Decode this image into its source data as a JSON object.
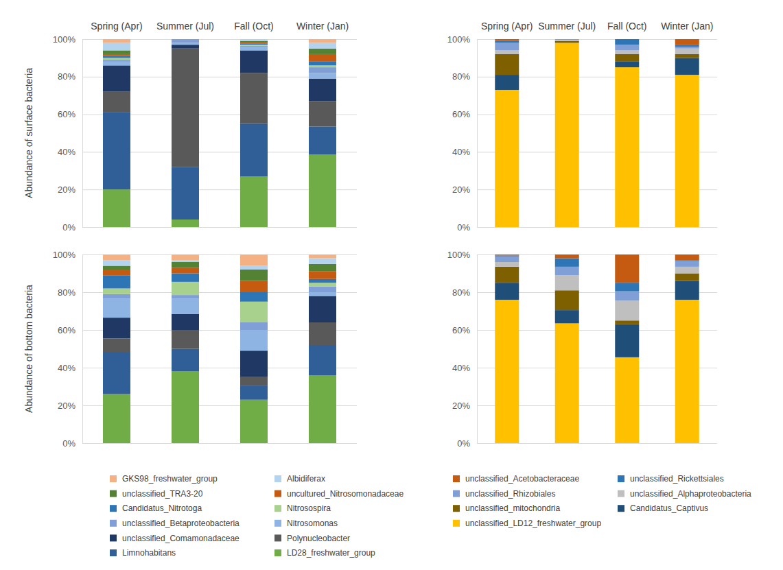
{
  "chart_data": [
    {
      "type": "bar",
      "stacked": true,
      "grid": true,
      "ylabel": "Abundance of surface bacteria",
      "categories": [
        "Spring (Apr)",
        "Summer (Jul)",
        "Fall (Oct)",
        "Winter (Jan)"
      ],
      "ylim": [
        0,
        100
      ],
      "yticks": [
        {
          "value": 0,
          "label": "0%"
        },
        {
          "value": 20,
          "label": "20%"
        },
        {
          "value": 40,
          "label": "40%"
        },
        {
          "value": 60,
          "label": "60%"
        },
        {
          "value": 80,
          "label": "80%"
        },
        {
          "value": 100,
          "label": "100%"
        }
      ],
      "series": [
        {
          "color": "#70ad47",
          "values": [
            20,
            4,
            27,
            38.5
          ]
        },
        {
          "color": "#2f5f96",
          "values": [
            41,
            28,
            28,
            15
          ]
        },
        {
          "color": "#595959",
          "values": [
            11,
            63,
            27,
            13.5
          ]
        },
        {
          "color": "#203864",
          "values": [
            14,
            2,
            12,
            12
          ]
        },
        {
          "color": "#8eb4e3",
          "values": [
            2,
            1,
            2,
            3
          ]
        },
        {
          "color": "#7f9fd6",
          "values": [
            1,
            2,
            0.5,
            3
          ]
        },
        {
          "color": "#a9d18e",
          "values": [
            1,
            0,
            0.5,
            1
          ]
        },
        {
          "color": "#2e75b6",
          "values": [
            1,
            0,
            0.5,
            2
          ]
        },
        {
          "color": "#c55a11",
          "values": [
            1,
            0,
            1,
            4
          ]
        },
        {
          "color": "#548235",
          "values": [
            2,
            0,
            0.5,
            3
          ]
        },
        {
          "color": "#b4d3ee",
          "values": [
            4,
            0,
            1,
            3
          ]
        },
        {
          "color": "#f4b183",
          "values": [
            2,
            0,
            0,
            2
          ]
        }
      ]
    },
    {
      "type": "bar",
      "stacked": true,
      "grid": true,
      "legend": "bottom",
      "ylabel": "Abundance of bottom bacteria",
      "categories": [
        null,
        null,
        null,
        null
      ],
      "ylim": [
        0,
        100
      ],
      "yticks": [
        {
          "value": 0,
          "label": "0%"
        },
        {
          "value": 20,
          "label": "20%"
        },
        {
          "value": 40,
          "label": "40%"
        },
        {
          "value": 60,
          "label": "60%"
        },
        {
          "value": 80,
          "label": "80%"
        },
        {
          "value": 100,
          "label": "100%"
        }
      ],
      "series": [
        {
          "name": "LD28_freshwater_group",
          "color": "#70ad47",
          "values": [
            26,
            38,
            23,
            36
          ]
        },
        {
          "name": "Limnohabitans",
          "color": "#2f5f96",
          "values": [
            22,
            12,
            7.5,
            16
          ]
        },
        {
          "name": "Polynucleobacter",
          "color": "#595959",
          "values": [
            7.5,
            10,
            4.5,
            12
          ]
        },
        {
          "name": "unclassified_Comamonadaceae",
          "color": "#203864",
          "values": [
            11,
            8.5,
            14,
            14
          ]
        },
        {
          "name": "Nitrosomonas",
          "color": "#8eb4e3",
          "values": [
            10,
            8,
            11,
            2
          ]
        },
        {
          "name": "unclassified_Betaproteobacteria",
          "color": "#7f9fd6",
          "values": [
            2.5,
            2,
            4,
            3
          ]
        },
        {
          "name": "Nitrosospira",
          "color": "#a9d18e",
          "values": [
            3,
            7,
            11,
            2
          ]
        },
        {
          "name": "Candidatus_Nitrotoga",
          "color": "#2e75b6",
          "values": [
            7,
            4.5,
            5,
            2
          ]
        },
        {
          "name": "uncultured_Nitrosomonadaceae",
          "color": "#c55a11",
          "values": [
            3,
            3,
            6,
            4
          ]
        },
        {
          "name": "unclassified_TRA3-20",
          "color": "#548235",
          "values": [
            2,
            3,
            6,
            4
          ]
        },
        {
          "name": "Albidiferax",
          "color": "#b4d3ee",
          "values": [
            3,
            1,
            2,
            3
          ]
        },
        {
          "name": "GKS98_freshwater_group",
          "color": "#f4b183",
          "values": [
            3,
            3,
            6,
            2
          ]
        }
      ]
    },
    {
      "type": "bar",
      "stacked": true,
      "grid": true,
      "categories": [
        "Spring (Apr)",
        "Summer (Jul)",
        "Fall (Oct)",
        "Winter (Jan)"
      ],
      "ylim": [
        0,
        100
      ],
      "yticks": [
        {
          "value": 0,
          "label": "0%"
        },
        {
          "value": 20,
          "label": "20%"
        },
        {
          "value": 40,
          "label": "40%"
        },
        {
          "value": 60,
          "label": "60%"
        },
        {
          "value": 80,
          "label": "80%"
        },
        {
          "value": 100,
          "label": "100%"
        }
      ],
      "series": [
        {
          "color": "#ffc000",
          "values": [
            73,
            98,
            85,
            81
          ]
        },
        {
          "color": "#1f4e79",
          "values": [
            8,
            0,
            3,
            9
          ]
        },
        {
          "color": "#7f6000",
          "values": [
            11,
            1,
            4,
            2
          ]
        },
        {
          "color": "#bfbfbf",
          "values": [
            2,
            0.5,
            2,
            3
          ]
        },
        {
          "color": "#7f9fd6",
          "values": [
            4,
            0.5,
            3,
            1
          ]
        },
        {
          "color": "#2e75b6",
          "values": [
            1,
            0,
            3,
            1
          ]
        },
        {
          "color": "#c55a11",
          "values": [
            1,
            0,
            0,
            3
          ]
        }
      ]
    },
    {
      "type": "bar",
      "stacked": true,
      "grid": true,
      "legend": "bottom",
      "categories": [
        null,
        null,
        null,
        null
      ],
      "ylim": [
        0,
        100
      ],
      "yticks": [
        {
          "value": 0,
          "label": "0%"
        },
        {
          "value": 20,
          "label": "20%"
        },
        {
          "value": 40,
          "label": "40%"
        },
        {
          "value": 60,
          "label": "60%"
        },
        {
          "value": 80,
          "label": "80%"
        },
        {
          "value": 100,
          "label": "100%"
        }
      ],
      "series": [
        {
          "name": "unclassified_LD12_freshwater_group",
          "color": "#ffc000",
          "values": [
            76,
            63.5,
            45.5,
            76
          ]
        },
        {
          "name": "Candidatus_Captivus",
          "color": "#1f4e79",
          "values": [
            9,
            7,
            17.5,
            10
          ]
        },
        {
          "name": "unclassified_mitochondria",
          "color": "#7f6000",
          "values": [
            8.5,
            10.5,
            2,
            4
          ]
        },
        {
          "name": "unclassified_Alphaproteobacteria",
          "color": "#bfbfbf",
          "values": [
            2.5,
            8,
            10.5,
            3.5
          ]
        },
        {
          "name": "unclassified_Rhizobiales",
          "color": "#7f9fd6",
          "values": [
            3,
            4.5,
            5,
            3
          ]
        },
        {
          "name": "unclassified_Rickettsiales",
          "color": "#2e75b6",
          "values": [
            0.5,
            4.5,
            4.5,
            0.5
          ]
        },
        {
          "name": "unclassified_Acetobacteraceae",
          "color": "#c55a11",
          "values": [
            0.5,
            2,
            15,
            3
          ]
        }
      ]
    }
  ]
}
